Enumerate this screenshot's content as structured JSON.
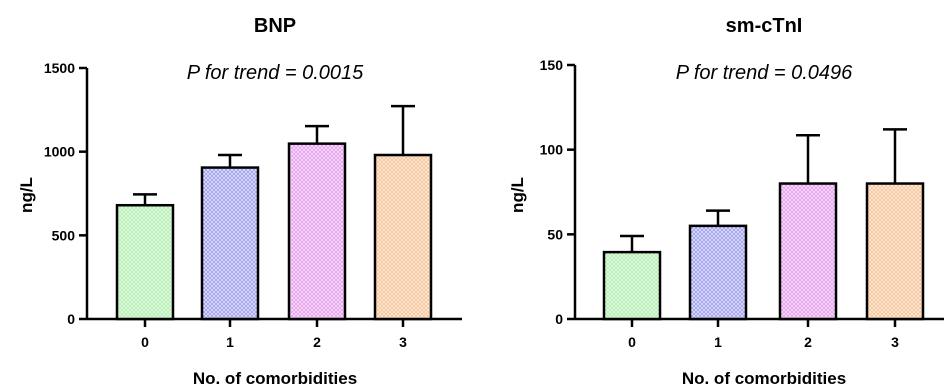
{
  "chart_data": [
    {
      "type": "bar",
      "title": "BNP",
      "annotation": "P for trend = 0.0015",
      "categories": [
        "0",
        "1",
        "2",
        "3"
      ],
      "values": [
        680,
        905,
        1048,
        980
      ],
      "error_upper": [
        745,
        980,
        1153,
        1272
      ],
      "xlabel": "No. of comorbidities",
      "ylabel": "ng/L",
      "ylim": [
        0,
        1500
      ],
      "yticks": [
        0,
        500,
        1000,
        1500
      ],
      "colors": [
        "#b8f0b8",
        "#a8a8f0",
        "#e8a8f0",
        "#f8c8a0"
      ],
      "grid": false,
      "legend": "none"
    },
    {
      "type": "bar",
      "title": "sm-cTnI",
      "annotation": "P for trend = 0.0496",
      "categories": [
        "0",
        "1",
        "2",
        "3"
      ],
      "values": [
        39.5,
        55,
        80,
        80
      ],
      "error_upper": [
        49,
        64,
        108.5,
        112
      ],
      "xlabel": "No. of comorbidities",
      "ylabel": "ng/L",
      "ylim": [
        0,
        150
      ],
      "yticks": [
        0,
        50,
        100,
        150
      ],
      "colors": [
        "#b8f0b8",
        "#a8a8f0",
        "#e8a8f0",
        "#f8c8a0"
      ],
      "grid": false,
      "legend": "none"
    }
  ]
}
